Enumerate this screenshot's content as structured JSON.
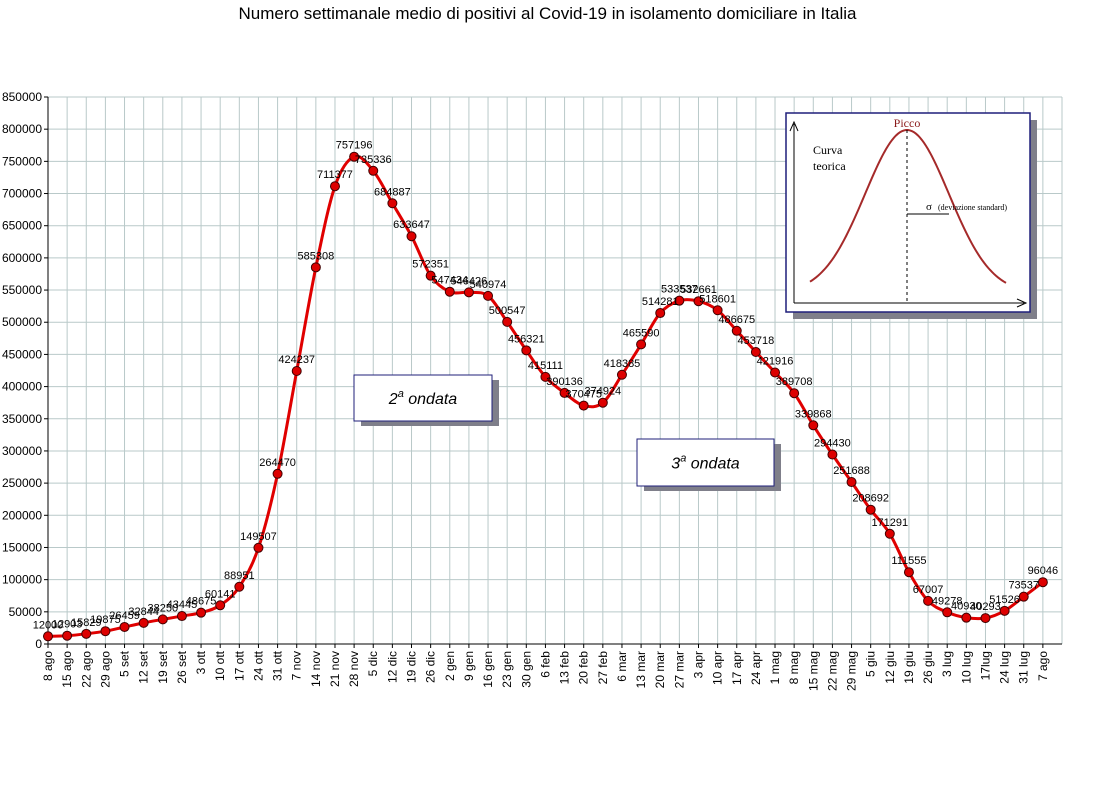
{
  "chart_data": {
    "type": "line",
    "title": "Numero settimanale medio di positivi al Covid-19  in isolamento domiciliare in Italia",
    "xlabel": "",
    "ylabel": "",
    "ylim": [
      0,
      850000
    ],
    "y_ticks": [
      "0",
      "50000",
      "100000",
      "150000",
      "200000",
      "250000",
      "300000",
      "350000",
      "400000",
      "450000",
      "500000",
      "550000",
      "600000",
      "650000",
      "700000",
      "750000",
      "800000",
      "850000"
    ],
    "grid": true,
    "line_color": "#e00000",
    "marker_color": "#dd0000",
    "categories": [
      "8 ago",
      "15 ago",
      "22 ago",
      "29 ago",
      "5 set",
      "12 set",
      "19 set",
      "26 set",
      "3 ott",
      "10 ott",
      "17 ott",
      "24 ott",
      "31 ott",
      "7 nov",
      "14 nov",
      "21 nov",
      "28 nov",
      "5 dic",
      "12 dic",
      "19 dic",
      "26 dic",
      "2 gen",
      "9 gen",
      "16 gen",
      "23 gen",
      "30 gen",
      "6 feb",
      "13 feb",
      "20 feb",
      "27 feb",
      "6 mar",
      "13 mar",
      "20 mar",
      "27 mar",
      "3 apr",
      "10 apr",
      "17 apr",
      "24 apr",
      "1 mag",
      "8 mag",
      "15 mag",
      "22 mag",
      "29 mag",
      "5 giu",
      "12 giu",
      "19 giu",
      "26 giu",
      "3 lug",
      "10 lug",
      "17lug",
      "24 lug",
      "31 lug",
      "7 ago"
    ],
    "series": [
      {
        "values": [
          12000,
          12903,
          15829,
          19875,
          26459,
          32844,
          38250,
          43445,
          48675,
          60141,
          88951,
          149507,
          264470,
          424237,
          585308,
          711377,
          757196,
          735336,
          684887,
          633647,
          572351,
          547434,
          546426,
          540974,
          500547,
          456321,
          415111,
          390136,
          370475,
          374924,
          418385,
          465590,
          514281,
          533537,
          532661,
          518601,
          486675,
          453718,
          421916,
          389708,
          339868,
          294430,
          251688,
          208692,
          171291,
          111555,
          67007,
          49278,
          40930,
          40293,
          51526,
          73537,
          96046
        ],
        "labels": [
          "12000",
          "12903",
          "15829",
          "19875",
          "26459",
          "32844",
          "38250",
          "43445",
          "48675",
          "60141",
          "88951",
          "149507",
          "264470",
          "424237",
          "585308",
          "711377",
          "757196",
          "735336",
          "684887",
          "633647",
          "572351",
          "547434",
          "546426",
          "540974",
          "500547",
          "456321",
          "415111",
          "390136",
          "370475",
          "374924",
          "418385",
          "465590",
          "514281",
          "533537",
          "532661",
          "518601",
          "486675",
          "453718",
          "421916",
          "389708",
          "339868",
          "294430",
          "251688",
          "208692",
          "171291",
          "111555",
          "67007",
          "49278",
          "40930",
          "40293",
          "51526",
          "73537",
          "96046"
        ]
      }
    ],
    "annotations": [
      {
        "text_main": "2",
        "text_sup": "a",
        "text_rest": " ondata"
      },
      {
        "text_main": "3",
        "text_sup": "a",
        "text_rest": " ondata"
      }
    ],
    "inset": {
      "peak_label": "Picco",
      "curve_label_line1": "Curva",
      "curve_label_line2": "teorica",
      "sigma_symbol": "σ",
      "sigma_label": "(deviazione standard)",
      "curve_color": "#a52a2a",
      "peak_color": "#8b1a1a"
    }
  }
}
